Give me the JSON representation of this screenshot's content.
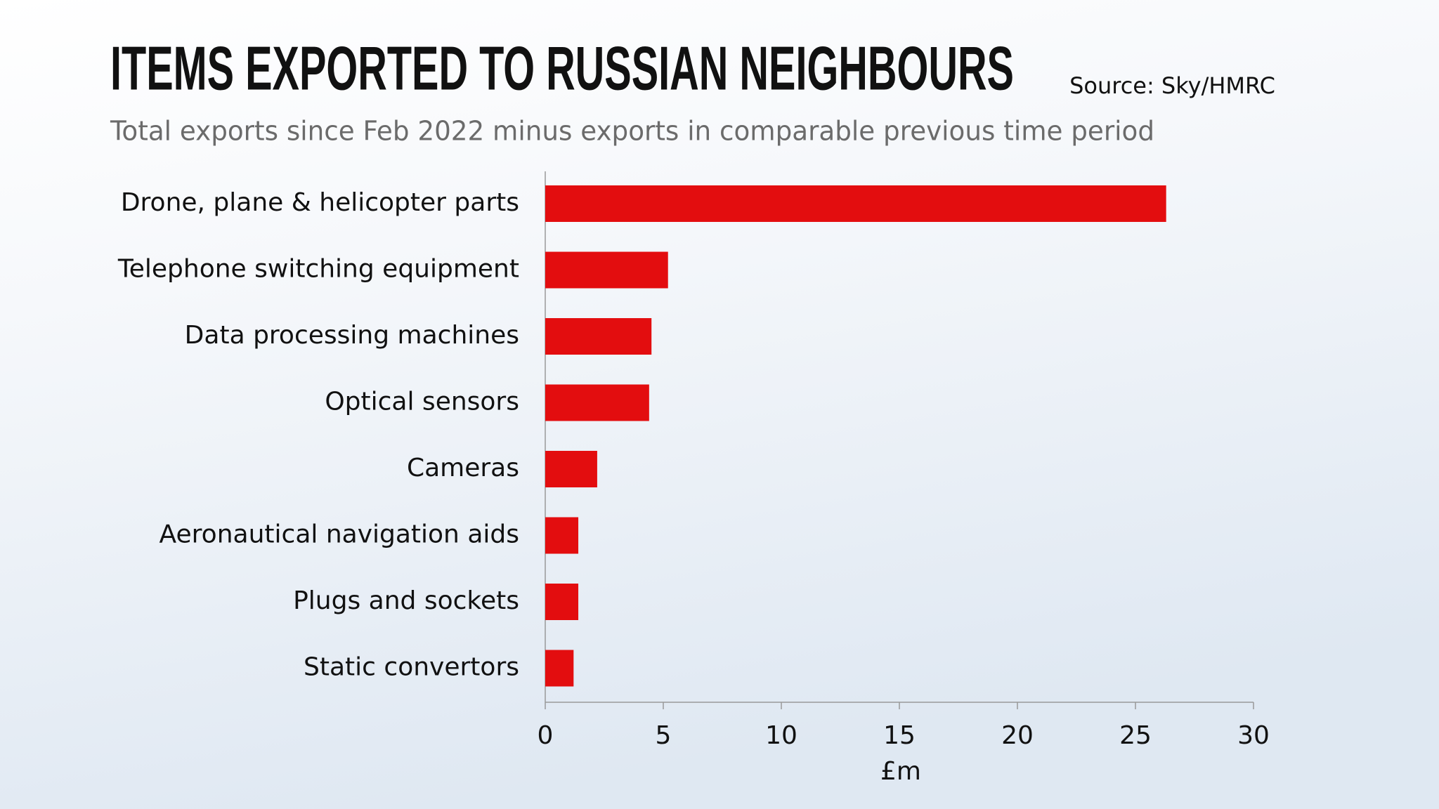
{
  "chart_data": {
    "type": "bar",
    "orientation": "horizontal",
    "title": "ITEMS EXPORTED TO RUSSIAN NEIGHBOURS",
    "subtitle": "Total exports since Feb 2022 minus exports in comparable previous time period",
    "source": "Source: Sky/HMRC",
    "xlabel": "£m",
    "categories": [
      "Drone, plane & helicopter parts",
      "Telephone switching equipment",
      "Data processing machines",
      "Optical sensors",
      "Cameras",
      "Aeronautical navigation aids",
      "Plugs and sockets",
      "Static convertors"
    ],
    "values": [
      26.3,
      5.2,
      4.5,
      4.4,
      2.2,
      1.4,
      1.4,
      1.2
    ],
    "color": "#e30d0f",
    "xlim": [
      0,
      30
    ],
    "xticks": [
      0,
      5,
      10,
      15,
      20,
      25,
      30
    ],
    "grid": false
  }
}
